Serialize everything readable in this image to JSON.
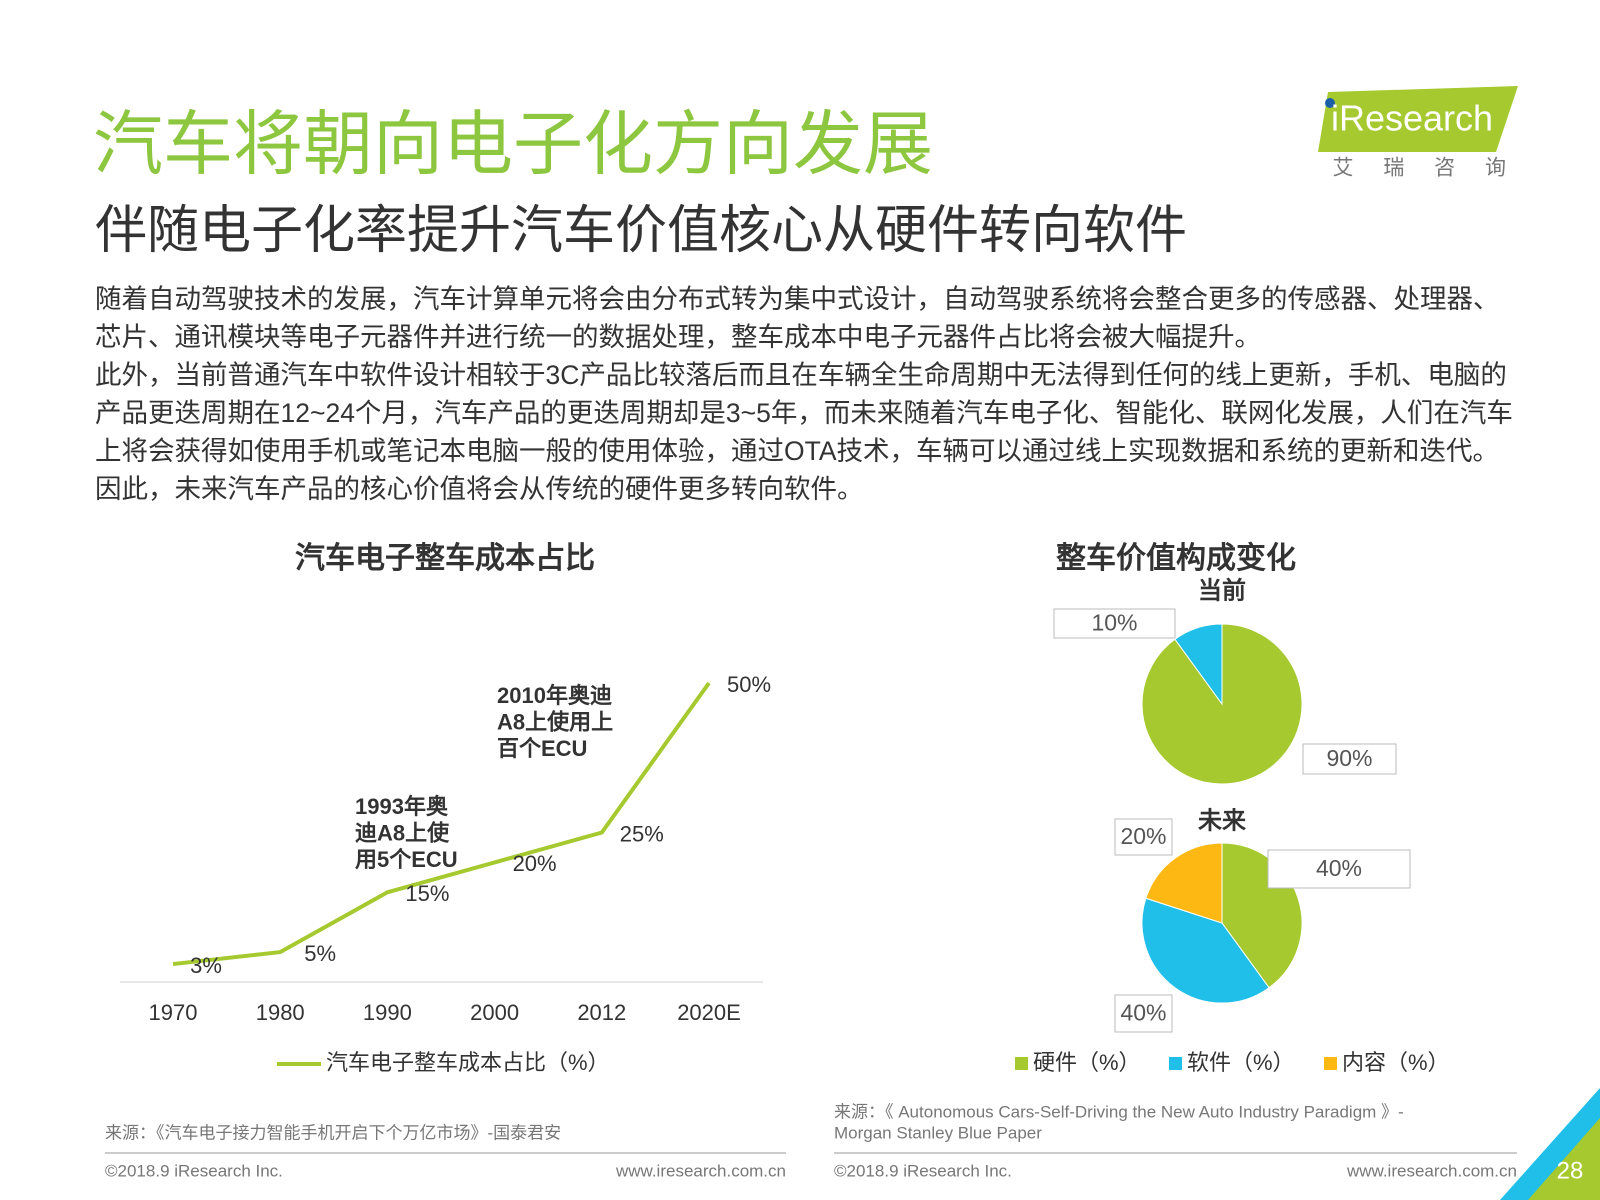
{
  "header": {
    "title": "汽车将朝向电子化方向发展",
    "subtitle": "伴随电子化率提升汽车价值核心从硬件转向软件",
    "logo": "iResearch",
    "tagline": "艾 瑞 咨 询"
  },
  "body": {
    "paragraphs": [
      "随着自动驾驶技术的发展，汽车计算单元将会由分布式转为集中式设计，自动驾驶系统将会整合更多的传感器、处理器、芯片、通讯模块等电子元器件并进行统一的数据处理，整车成本中电子元器件占比将会被大幅提升。",
      "此外，当前普通汽车中软件设计相较于3C产品比较落后而且在车辆全生命周期中无法得到任何的线上更新，手机、电脑的产品更迭周期在12~24个月，汽车产品的更迭周期却是3~5年，而未来随着汽车电子化、智能化、联网化发展，人们在汽车上将会获得如使用手机或笔记本电脑一般的使用体验，通过OTA技术，车辆可以通过线上实现数据和系统的更新和迭代。因此，未来汽车产品的核心价值将会从传统的硬件更多转向软件。"
    ]
  },
  "chart_data": [
    {
      "type": "line",
      "title": "汽车电子整车成本占比",
      "categories": [
        "1970",
        "1980",
        "1990",
        "2000",
        "2012",
        "2020E"
      ],
      "series": [
        {
          "name": "汽车电子整车成本占比（%）",
          "color": "#a6c930",
          "values": [
            3,
            5,
            15,
            20,
            25,
            50
          ],
          "value_labels": [
            "3%",
            "5%",
            "15%",
            "20%",
            "25%",
            "50%"
          ]
        }
      ],
      "annotations": [
        {
          "lines": [
            "2010年奥迪",
            "A8上使用上",
            "百个ECU"
          ]
        },
        {
          "lines": [
            "1993年奥",
            "迪A8上使",
            "用5个ECU"
          ]
        }
      ]
    },
    {
      "type": "pie",
      "title": "整车价值构成变化",
      "legend": [
        {
          "name": "硬件（%）",
          "color": "#a6c930"
        },
        {
          "name": "软件（%）",
          "color": "#1fbfea"
        },
        {
          "name": "内容（%）",
          "color": "#fdb813"
        }
      ],
      "pies": [
        {
          "label": "当前",
          "values": [
            90,
            10
          ],
          "value_labels": [
            "90%",
            "10%"
          ]
        },
        {
          "label": "未来",
          "values": [
            40,
            40,
            20
          ],
          "value_labels": [
            "40%",
            "40%",
            "20%"
          ]
        }
      ]
    }
  ],
  "footer": {
    "left": {
      "source": "来源：《汽车电子接力智能手机开启下个万亿市场》-国泰君安",
      "copyright": "©2018.9 iResearch Inc.",
      "url": "www.iresearch.com.cn"
    },
    "right": {
      "source": [
        "来源：《 Autonomous Cars-Self-Driving the New Auto Industry Paradigm 》-",
        "Morgan Stanley Blue Paper"
      ],
      "copyright": "©2018.9 iResearch Inc.",
      "url": "www.iresearch.com.cn"
    },
    "page": "28"
  }
}
